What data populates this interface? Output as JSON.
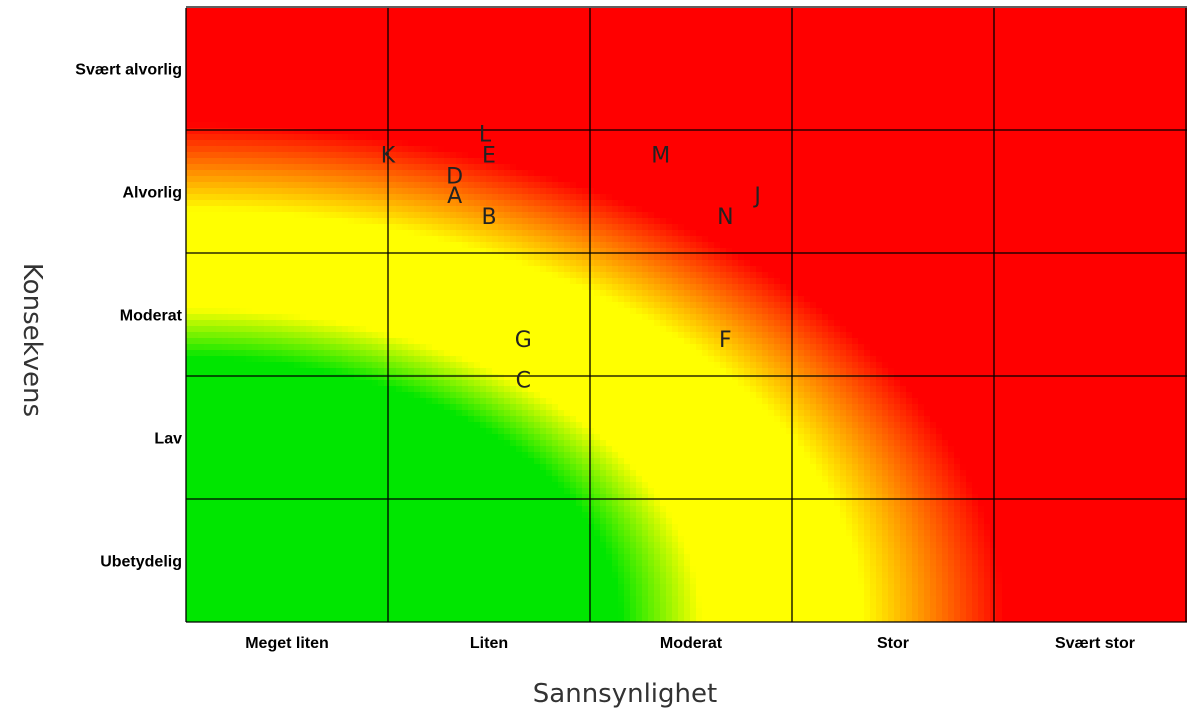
{
  "chart_data": {
    "type": "heatmap",
    "title": "",
    "xlabel": "Sannsynlighet",
    "ylabel": "Konsekvens",
    "x_categories": [
      "Meget liten",
      "Liten",
      "Moderat",
      "Stor",
      "Svært stor"
    ],
    "y_categories": [
      "Ubetydelig",
      "Lav",
      "Moderat",
      "Alvorlig",
      "Svært alvorlig"
    ],
    "xlim": [
      0,
      5
    ],
    "ylim": [
      0,
      5
    ],
    "grid": true,
    "color_scale": {
      "low": "#00e600",
      "mid": "#ffff00",
      "high": "#ff0000"
    },
    "points": [
      {
        "label": "K",
        "x": 1.0,
        "y": 3.8
      },
      {
        "label": "L",
        "x": 1.48,
        "y": 3.97
      },
      {
        "label": "E",
        "x": 1.5,
        "y": 3.8
      },
      {
        "label": "D",
        "x": 1.33,
        "y": 3.63
      },
      {
        "label": "A",
        "x": 1.33,
        "y": 3.47
      },
      {
        "label": "B",
        "x": 1.5,
        "y": 3.3
      },
      {
        "label": "M",
        "x": 2.35,
        "y": 3.8
      },
      {
        "label": "J",
        "x": 2.83,
        "y": 3.47
      },
      {
        "label": "N",
        "x": 2.67,
        "y": 3.3
      },
      {
        "label": "G",
        "x": 1.67,
        "y": 2.3
      },
      {
        "label": "F",
        "x": 2.67,
        "y": 2.3
      },
      {
        "label": "C",
        "x": 1.67,
        "y": 1.97
      }
    ]
  }
}
